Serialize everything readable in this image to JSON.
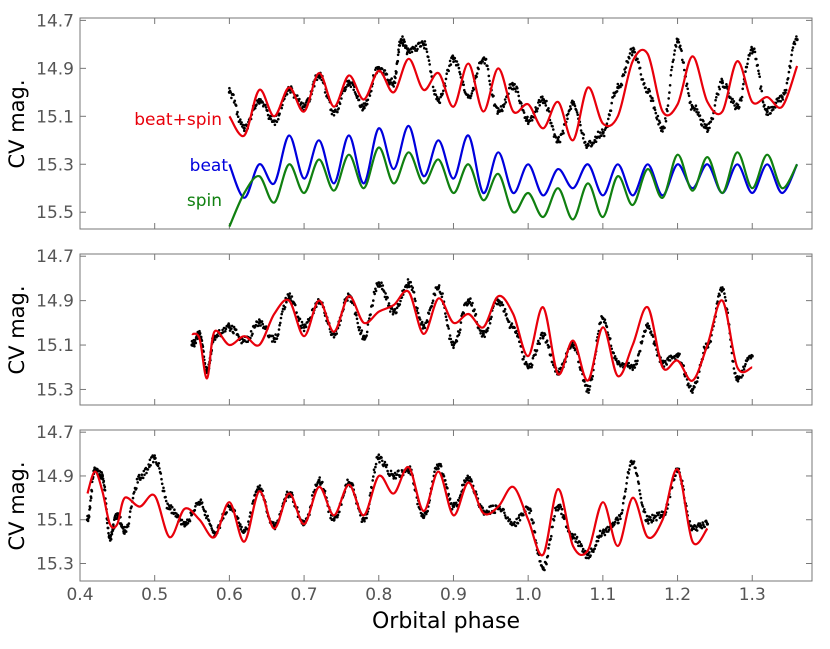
{
  "colors": {
    "data": "#000000",
    "model": "#e8000b",
    "beat": "#0000dd",
    "spin": "#108010",
    "tick_text": "#555555",
    "frame": "#777777"
  },
  "chart_data": [
    {
      "type": "line",
      "panel": "top",
      "xlabel": "",
      "ylabel": "CV mag.",
      "xlim": [
        0.4,
        1.38
      ],
      "ylim": [
        15.57,
        14.69
      ],
      "y_inverted": true,
      "yticks": [
        14.7,
        14.9,
        15.1,
        15.3,
        15.5
      ],
      "ytick_labels": [
        "14.7",
        "14.9",
        "15.1",
        "15.3",
        "15.5"
      ],
      "legend": [
        {
          "label": "beat+spin",
          "color": "#e8000b"
        },
        {
          "label": "beat",
          "color": "#0000dd"
        },
        {
          "label": "spin",
          "color": "#108010"
        }
      ],
      "series": [
        {
          "name": "observed",
          "style": "dots",
          "color": "#000000",
          "x": [
            0.6,
            0.62,
            0.64,
            0.66,
            0.68,
            0.7,
            0.72,
            0.74,
            0.76,
            0.78,
            0.8,
            0.82,
            0.83,
            0.84,
            0.86,
            0.88,
            0.9,
            0.92,
            0.94,
            0.96,
            0.98,
            1.0,
            1.02,
            1.04,
            1.06,
            1.08,
            1.1,
            1.12,
            1.14,
            1.16,
            1.18,
            1.2,
            1.22,
            1.24,
            1.26,
            1.28,
            1.3,
            1.32,
            1.34,
            1.36
          ],
          "y": [
            15.0,
            15.15,
            15.03,
            15.12,
            14.99,
            15.06,
            14.93,
            15.08,
            14.96,
            15.06,
            14.9,
            14.96,
            14.78,
            14.83,
            14.8,
            15.03,
            14.86,
            15.02,
            14.86,
            15.08,
            14.97,
            15.12,
            15.03,
            15.2,
            15.05,
            15.22,
            15.17,
            14.98,
            14.83,
            15.0,
            15.15,
            14.79,
            15.06,
            15.15,
            14.96,
            15.06,
            14.82,
            15.08,
            15.02,
            14.78
          ]
        },
        {
          "name": "beat+spin",
          "style": "line",
          "color": "#e8000b",
          "x": [
            0.6,
            0.62,
            0.64,
            0.66,
            0.68,
            0.7,
            0.72,
            0.74,
            0.76,
            0.78,
            0.8,
            0.82,
            0.84,
            0.86,
            0.88,
            0.9,
            0.92,
            0.94,
            0.96,
            0.98,
            1.0,
            1.02,
            1.04,
            1.06,
            1.08,
            1.1,
            1.12,
            1.14,
            1.16,
            1.18,
            1.2,
            1.22,
            1.24,
            1.26,
            1.28,
            1.3,
            1.32,
            1.34,
            1.36
          ],
          "y": [
            15.1,
            15.18,
            14.99,
            15.1,
            14.98,
            15.08,
            14.92,
            15.06,
            14.93,
            15.03,
            14.91,
            15.0,
            14.86,
            14.99,
            14.92,
            15.06,
            14.88,
            15.08,
            14.9,
            15.08,
            15.05,
            15.15,
            15.04,
            15.2,
            14.98,
            15.13,
            15.1,
            14.87,
            14.84,
            15.08,
            15.05,
            14.85,
            15.04,
            15.08,
            14.87,
            15.04,
            15.02,
            15.06,
            14.89
          ]
        },
        {
          "name": "beat",
          "style": "line",
          "color": "#0000dd",
          "x": [
            0.6,
            0.62,
            0.64,
            0.66,
            0.68,
            0.7,
            0.72,
            0.74,
            0.76,
            0.78,
            0.8,
            0.82,
            0.84,
            0.86,
            0.88,
            0.9,
            0.92,
            0.94,
            0.96,
            0.98,
            1.0,
            1.02,
            1.04,
            1.06,
            1.08,
            1.1,
            1.12,
            1.14,
            1.16,
            1.18,
            1.2,
            1.22,
            1.24,
            1.26,
            1.28,
            1.3,
            1.32,
            1.34,
            1.36
          ],
          "y": [
            15.3,
            15.44,
            15.3,
            15.38,
            15.18,
            15.36,
            15.2,
            15.38,
            15.18,
            15.38,
            15.15,
            15.32,
            15.14,
            15.35,
            15.2,
            15.36,
            15.18,
            15.42,
            15.25,
            15.42,
            15.3,
            15.43,
            15.32,
            15.4,
            15.3,
            15.43,
            15.3,
            15.43,
            15.3,
            15.43,
            15.3,
            15.4,
            15.3,
            15.42,
            15.3,
            15.42,
            15.3,
            15.42,
            15.3
          ]
        },
        {
          "name": "spin",
          "style": "line",
          "color": "#108010",
          "x": [
            0.6,
            0.62,
            0.64,
            0.66,
            0.68,
            0.7,
            0.72,
            0.74,
            0.76,
            0.78,
            0.8,
            0.82,
            0.84,
            0.86,
            0.88,
            0.9,
            0.92,
            0.94,
            0.96,
            0.98,
            1.0,
            1.02,
            1.04,
            1.06,
            1.08,
            1.1,
            1.12,
            1.14,
            1.16,
            1.18,
            1.2,
            1.22,
            1.24,
            1.26,
            1.28,
            1.3,
            1.32,
            1.34,
            1.36
          ],
          "y": [
            15.56,
            15.42,
            15.35,
            15.46,
            15.3,
            15.42,
            15.28,
            15.41,
            15.26,
            15.4,
            15.23,
            15.38,
            15.25,
            15.38,
            15.28,
            15.42,
            15.3,
            15.45,
            15.34,
            15.5,
            15.42,
            15.52,
            15.4,
            15.53,
            15.38,
            15.52,
            15.35,
            15.47,
            15.32,
            15.44,
            15.26,
            15.41,
            15.27,
            15.42,
            15.25,
            15.4,
            15.26,
            15.4,
            15.3
          ]
        }
      ]
    },
    {
      "type": "line",
      "panel": "middle",
      "xlabel": "",
      "ylabel": "CV mag.",
      "xlim": [
        0.4,
        1.38
      ],
      "ylim": [
        15.37,
        14.69
      ],
      "y_inverted": true,
      "yticks": [
        14.7,
        14.9,
        15.1,
        15.3
      ],
      "ytick_labels": [
        "14.7",
        "14.9",
        "15.1",
        "15.3"
      ],
      "series": [
        {
          "name": "observed",
          "style": "dots",
          "color": "#000000",
          "x": [
            0.55,
            0.56,
            0.57,
            0.58,
            0.6,
            0.62,
            0.64,
            0.66,
            0.68,
            0.7,
            0.72,
            0.74,
            0.76,
            0.78,
            0.8,
            0.82,
            0.84,
            0.86,
            0.88,
            0.9,
            0.92,
            0.94,
            0.96,
            0.98,
            1.0,
            1.02,
            1.04,
            1.06,
            1.08,
            1.1,
            1.12,
            1.14,
            1.16,
            1.18,
            1.2,
            1.22,
            1.24,
            1.26,
            1.28,
            1.3
          ],
          "y": [
            15.1,
            15.05,
            15.22,
            15.06,
            15.02,
            15.08,
            15.0,
            15.07,
            14.88,
            15.02,
            14.91,
            15.05,
            14.88,
            15.06,
            14.82,
            14.95,
            14.82,
            15.01,
            14.84,
            15.1,
            14.9,
            15.05,
            14.9,
            15.02,
            15.2,
            15.06,
            15.22,
            15.1,
            15.3,
            14.98,
            15.18,
            15.2,
            15.02,
            15.18,
            15.15,
            15.3,
            15.1,
            14.85,
            15.25,
            15.15
          ]
        },
        {
          "name": "beat+spin",
          "style": "line",
          "color": "#e8000b",
          "x": [
            0.55,
            0.56,
            0.57,
            0.58,
            0.6,
            0.62,
            0.64,
            0.66,
            0.68,
            0.7,
            0.72,
            0.74,
            0.76,
            0.78,
            0.8,
            0.82,
            0.84,
            0.86,
            0.88,
            0.9,
            0.92,
            0.94,
            0.96,
            0.98,
            1.0,
            1.02,
            1.04,
            1.06,
            1.08,
            1.1,
            1.12,
            1.14,
            1.16,
            1.18,
            1.2,
            1.22,
            1.24,
            1.26,
            1.28,
            1.3
          ],
          "y": [
            15.05,
            15.07,
            15.25,
            15.04,
            15.1,
            15.06,
            15.1,
            14.96,
            14.9,
            15.06,
            14.9,
            15.04,
            14.88,
            15.0,
            14.95,
            14.92,
            14.86,
            15.05,
            14.89,
            15.0,
            14.96,
            15.02,
            14.88,
            14.96,
            15.15,
            14.93,
            15.23,
            15.08,
            15.26,
            15.02,
            15.24,
            15.1,
            14.93,
            15.2,
            15.17,
            15.26,
            15.1,
            14.9,
            15.2,
            15.2
          ]
        }
      ]
    },
    {
      "type": "line",
      "panel": "bottom",
      "xlabel": "Orbital phase",
      "ylabel": "CV mag.",
      "xlim": [
        0.4,
        1.38
      ],
      "ylim": [
        15.38,
        14.69
      ],
      "y_inverted": true,
      "xticks": [
        0.4,
        0.5,
        0.6,
        0.7,
        0.8,
        0.9,
        1.0,
        1.1,
        1.2,
        1.3
      ],
      "xtick_labels": [
        "0.4",
        "0.5",
        "0.6",
        "0.7",
        "0.8",
        "0.9",
        "1.0",
        "1.1",
        "1.2",
        "1.3"
      ],
      "yticks": [
        14.7,
        14.9,
        15.1,
        15.3
      ],
      "ytick_labels": [
        "14.7",
        "14.9",
        "15.1",
        "15.3"
      ],
      "series": [
        {
          "name": "observed",
          "style": "dots",
          "color": "#000000",
          "x": [
            0.41,
            0.42,
            0.43,
            0.44,
            0.45,
            0.46,
            0.48,
            0.5,
            0.52,
            0.54,
            0.56,
            0.58,
            0.6,
            0.62,
            0.64,
            0.66,
            0.68,
            0.7,
            0.72,
            0.74,
            0.76,
            0.78,
            0.8,
            0.82,
            0.84,
            0.86,
            0.88,
            0.9,
            0.92,
            0.94,
            0.96,
            0.98,
            1.0,
            1.02,
            1.04,
            1.06,
            1.08,
            1.1,
            1.12,
            1.14,
            1.16,
            1.18,
            1.2,
            1.22,
            1.24
          ],
          "y": [
            15.1,
            14.87,
            14.9,
            15.18,
            15.08,
            15.15,
            14.91,
            14.82,
            15.05,
            15.12,
            15.02,
            15.16,
            15.04,
            15.15,
            14.96,
            15.13,
            14.98,
            15.12,
            14.92,
            15.1,
            14.93,
            15.1,
            14.82,
            14.9,
            14.87,
            15.09,
            14.85,
            15.04,
            14.91,
            15.06,
            15.05,
            15.12,
            15.05,
            15.32,
            15.04,
            15.18,
            15.26,
            15.16,
            15.1,
            14.84,
            15.1,
            15.08,
            14.88,
            15.14,
            15.12
          ]
        },
        {
          "name": "beat+spin",
          "style": "line",
          "color": "#e8000b",
          "x": [
            0.41,
            0.42,
            0.43,
            0.44,
            0.45,
            0.46,
            0.48,
            0.5,
            0.52,
            0.54,
            0.56,
            0.58,
            0.6,
            0.62,
            0.64,
            0.66,
            0.68,
            0.7,
            0.72,
            0.74,
            0.76,
            0.78,
            0.8,
            0.82,
            0.84,
            0.86,
            0.88,
            0.9,
            0.92,
            0.94,
            0.96,
            0.98,
            1.0,
            1.02,
            1.04,
            1.06,
            1.08,
            1.1,
            1.12,
            1.14,
            1.16,
            1.18,
            1.2,
            1.22,
            1.24
          ],
          "y": [
            14.98,
            14.88,
            14.97,
            15.12,
            15.12,
            15.0,
            15.04,
            14.99,
            15.18,
            15.05,
            15.1,
            15.18,
            15.02,
            15.2,
            14.97,
            15.14,
            14.98,
            15.12,
            14.95,
            15.08,
            14.94,
            15.08,
            14.9,
            14.98,
            14.86,
            15.06,
            14.88,
            15.08,
            14.93,
            15.07,
            15.04,
            14.95,
            15.1,
            15.26,
            14.96,
            15.22,
            15.24,
            15.02,
            15.22,
            15.0,
            15.18,
            15.1,
            14.87,
            15.2,
            15.14
          ]
        }
      ]
    }
  ]
}
